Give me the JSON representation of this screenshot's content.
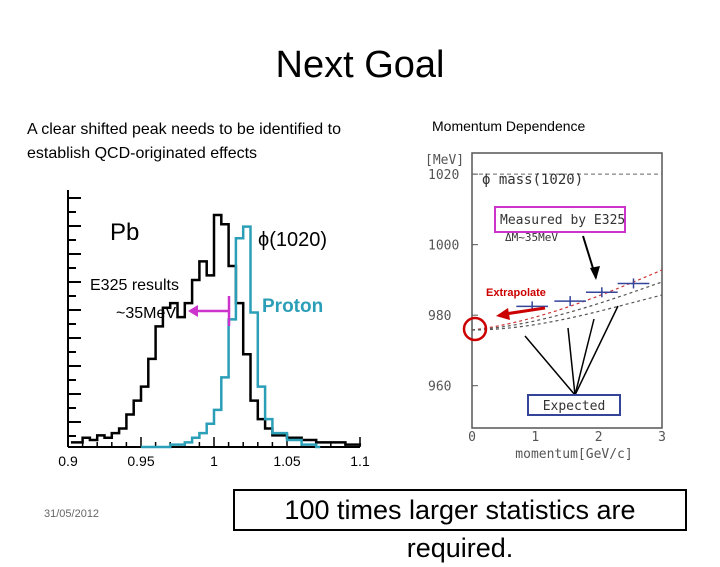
{
  "slide": {
    "title": "Next Goal",
    "intro": "A clear shifted peak needs to be identified to establish QCD-originated effects",
    "momentum_heading": "Momentum Dependence",
    "date": "31/05/2012",
    "conclusion": "100 times larger statistics are required."
  },
  "chart_data": [
    {
      "type": "line",
      "title": "",
      "xlabel": "",
      "ylabel": "",
      "xlim": [
        0.9,
        1.1
      ],
      "x_ticks": [
        "0.9",
        "0.95",
        "1",
        "1.05",
        "1.1"
      ],
      "annotations": {
        "target": "Pb",
        "peak": "ϕ(1020)",
        "results": "E325 results",
        "shift": "~35MeV",
        "proton": "Proton"
      },
      "series": [
        {
          "name": "",
          "color": "#000000",
          "x": [
            0.902,
            0.91,
            0.915,
            0.92,
            0.925,
            0.93,
            0.935,
            0.94,
            0.945,
            0.95,
            0.955,
            0.96,
            0.965,
            0.97,
            0.975,
            0.98,
            0.985,
            0.99,
            0.995,
            1.0,
            1.005,
            1.01,
            1.015,
            1.02,
            1.025,
            1.03,
            1.035,
            1.04,
            1.05,
            1.06,
            1.07,
            1.08,
            1.09,
            1.098
          ],
          "y": [
            2,
            4,
            3,
            5,
            4,
            6,
            8,
            14,
            20,
            26,
            38,
            52,
            60,
            62,
            56,
            62,
            72,
            80,
            74,
            100,
            96,
            78,
            62,
            40,
            20,
            12,
            8,
            5,
            4,
            3,
            2,
            2,
            1,
            1
          ]
        },
        {
          "name": "",
          "color": "#2b9fb8",
          "x": [
            0.95,
            0.96,
            0.97,
            0.98,
            0.985,
            0.99,
            0.995,
            1.0,
            1.005,
            1.01,
            1.015,
            1.02,
            1.025,
            1.03,
            1.035,
            1.04,
            1.05,
            1.06,
            1.07
          ],
          "y": [
            0,
            0,
            1,
            2,
            4,
            6,
            10,
            16,
            30,
            55,
            90,
            95,
            58,
            26,
            12,
            6,
            3,
            1,
            0
          ]
        }
      ]
    },
    {
      "type": "scatter",
      "title": "",
      "ylabel": "[MeV]",
      "xlabel": "momentum[GeV/c]",
      "xlim": [
        0,
        3
      ],
      "ylim": [
        948,
        1026
      ],
      "x_ticks": [
        0,
        1,
        2,
        3
      ],
      "y_ticks": [
        960,
        980,
        1000,
        1020
      ],
      "reference_label": "ϕ mass(1020)",
      "reference_value": 1020,
      "measured_label": "Measured by E325",
      "shift_label": "ΔM~35MeV",
      "extrapolate_label": "Extrapolate",
      "expected_label": "Expected",
      "points": [
        {
          "x": 0.95,
          "y": 982.5,
          "xerr": 0.25
        },
        {
          "x": 1.55,
          "y": 984.0,
          "xerr": 0.25
        },
        {
          "x": 2.05,
          "y": 986.5,
          "xerr": 0.25
        },
        {
          "x": 2.55,
          "y": 989.0,
          "xerr": 0.25
        }
      ],
      "colors": {
        "measured": "#cc33cc",
        "expected": "#334499",
        "extrapolate": "#cc0000",
        "curve": "#cc3333"
      }
    }
  ]
}
